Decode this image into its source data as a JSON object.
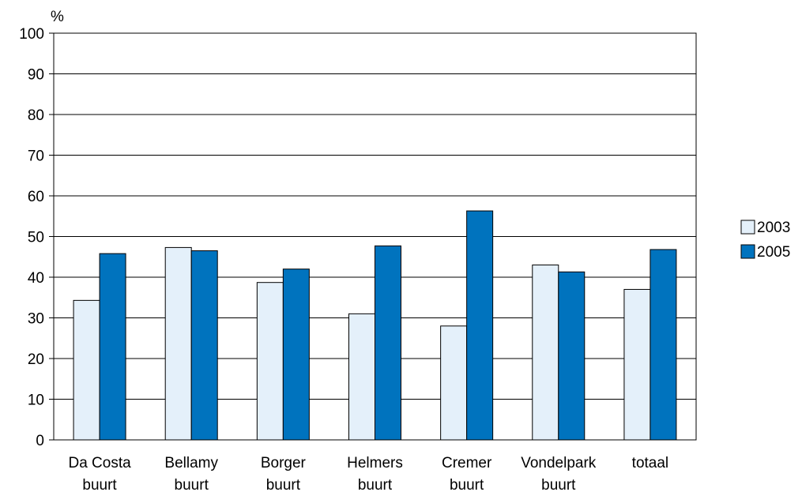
{
  "chart_data": {
    "type": "bar",
    "ylabel": "%",
    "ylim": [
      0,
      100
    ],
    "yticks": [
      0,
      10,
      20,
      30,
      40,
      50,
      60,
      70,
      80,
      90,
      100
    ],
    "grid": true,
    "legend_position": "right",
    "categories": [
      [
        "Da Costa",
        "buurt"
      ],
      [
        "Bellamy",
        "buurt"
      ],
      [
        "Borger",
        "buurt"
      ],
      [
        "Helmers",
        "buurt"
      ],
      [
        "Cremer",
        "buurt"
      ],
      [
        "Vondelpark",
        "buurt"
      ],
      [
        "totaal"
      ]
    ],
    "series": [
      {
        "name": "2003",
        "color": "#e4f0fa",
        "values": [
          34.3,
          47.3,
          38.7,
          31.0,
          28.0,
          43.0,
          37.0
        ]
      },
      {
        "name": "2005",
        "color": "#0073be",
        "values": [
          45.8,
          46.5,
          42.0,
          47.7,
          56.3,
          41.3,
          46.8
        ]
      }
    ]
  }
}
